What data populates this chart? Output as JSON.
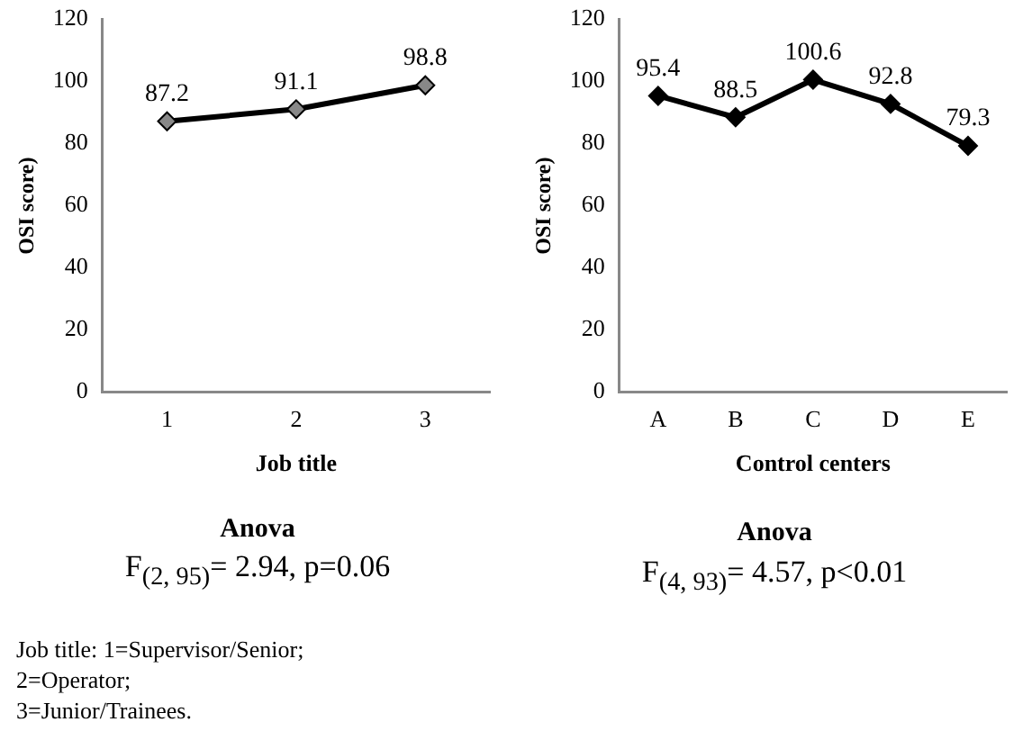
{
  "chart_data": [
    {
      "type": "line",
      "categories": [
        "1",
        "2",
        "3"
      ],
      "xlabel": "Job title",
      "ylabel": "OSI score)",
      "series": [
        {
          "color": "#000000",
          "values": [
            87.2,
            91.1,
            98.8
          ]
        }
      ],
      "ylim": [
        0,
        120
      ],
      "yticks": [
        0,
        20,
        40,
        60,
        80,
        100,
        120
      ],
      "grid": false,
      "legend": false,
      "marker": "diamond",
      "line_style": "solid",
      "data_labels": true,
      "annotations": [
        "Anova",
        "F$_{(2, 95)}$= 2.94, p=0.06",
        "Job title: 1=Supervisor/Senior;\n2=Operator;\n3=Junior/Trainees."
      ]
    },
    {
      "type": "line",
      "categories": [
        "A",
        "B",
        "C",
        "D",
        "E"
      ],
      "xlabel": "Control centers",
      "ylabel": "OSI score)",
      "series": [
        {
          "color": "#000000",
          "values": [
            95.4,
            88.5,
            100.6,
            92.8,
            79.3
          ]
        }
      ],
      "ylim": [
        0,
        120
      ],
      "yticks": [
        0,
        20,
        40,
        60,
        80,
        100,
        120
      ],
      "grid": false,
      "legend": false,
      "marker": "diamond",
      "line_style": "solid",
      "data_labels": true,
      "annotations": [
        "Anova",
        "F$_{(4, 93)}$= 4.57, p<0.01"
      ]
    }
  ]
}
